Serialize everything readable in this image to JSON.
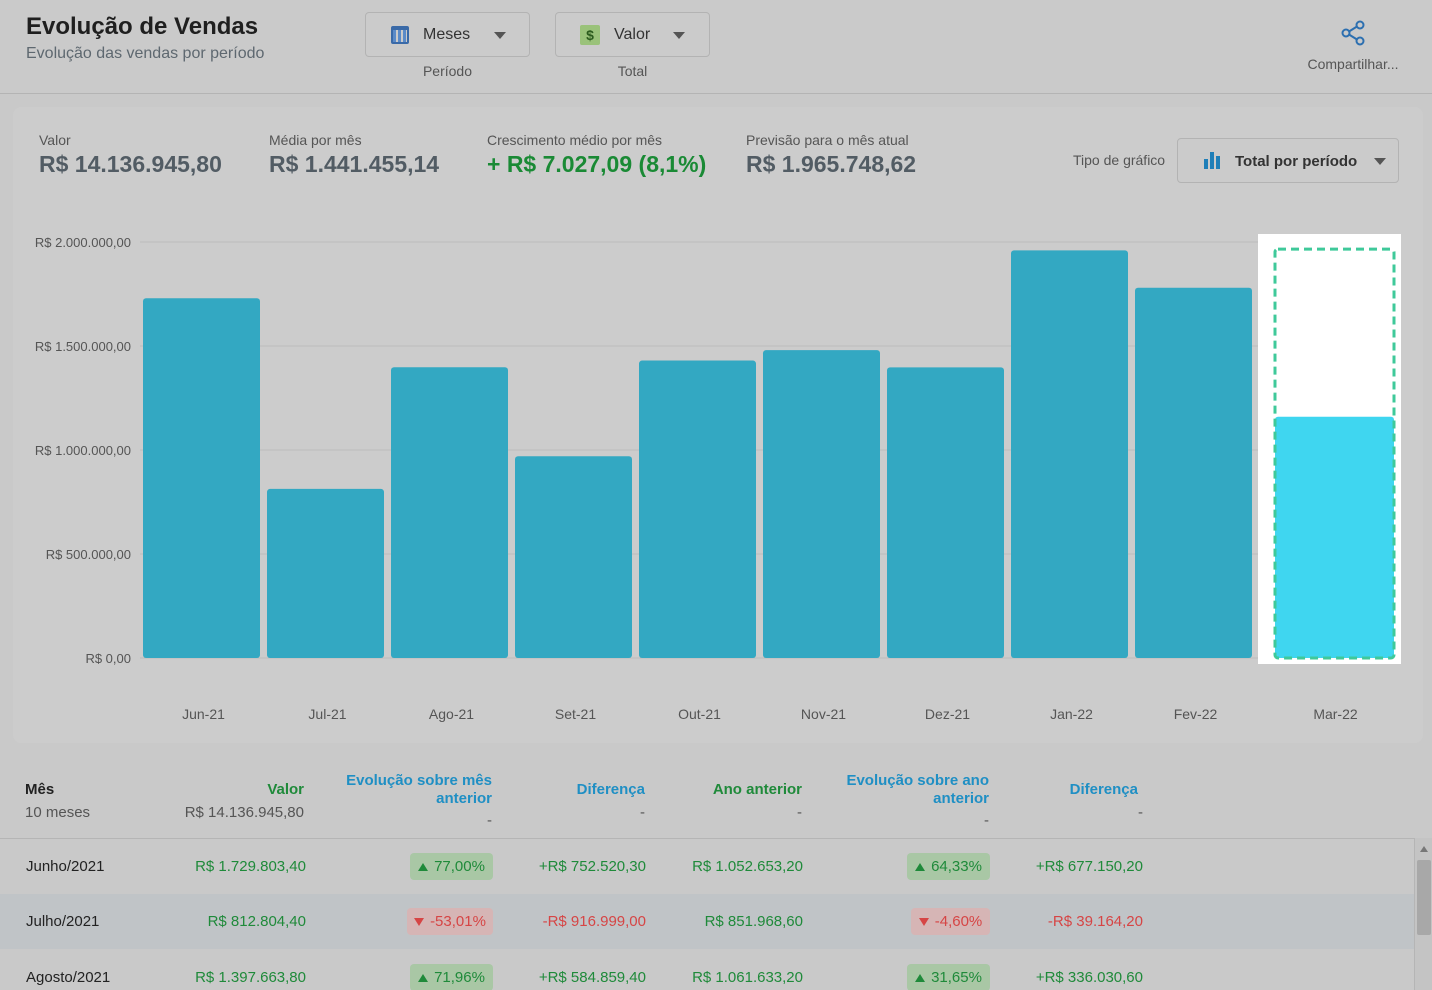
{
  "header": {
    "title": "Evolução de Vendas",
    "subtitle": "Evolução das vendas por período",
    "period_dropdown": {
      "value": "Meses",
      "caption": "Período",
      "icon": "calendar-icon"
    },
    "metric_dropdown": {
      "value": "Valor",
      "caption": "Total",
      "icon": "dollar-icon"
    },
    "share_label": "Compartilhar..."
  },
  "kpis": [
    {
      "label": "Valor",
      "value": "R$ 14.136.945,80"
    },
    {
      "label": "Média por mês",
      "value": "R$ 1.441.455,14"
    },
    {
      "label": "Crescimento médio por mês",
      "value": "+ R$ 7.027,09 (8,1%)"
    },
    {
      "label": "Previsão para o mês atual",
      "value": "R$ 1.965.748,62"
    }
  ],
  "chart_type": {
    "label": "Tipo de gráfico",
    "value": "Total por período"
  },
  "colors": {
    "bar": "#33a8c2",
    "current_bar": "#3fd6f0",
    "forecast_outline": "#3fc99a",
    "positive": "#1f8a3a",
    "negative": "#d64545",
    "header_blue": "#1f8fc4"
  },
  "chart_data": {
    "type": "bar",
    "categories": [
      "Jun-21",
      "Jul-21",
      "Ago-21",
      "Set-21",
      "Out-21",
      "Nov-21",
      "Dez-21",
      "Jan-22",
      "Fev-22",
      "Mar-22"
    ],
    "values": [
      1729803.4,
      812804.4,
      1397663.8,
      970000,
      1430000,
      1480000,
      1397000,
      1960000,
      1780000,
      1160000
    ],
    "forecast": {
      "category": "Mar-22",
      "value": 1965748.62
    },
    "yticks": [
      "R$ 0,00",
      "R$ 500.000,00",
      "R$ 1.000.000,00",
      "R$ 1.500.000,00",
      "R$ 2.000.000,00"
    ],
    "ylim": [
      0,
      2000000
    ],
    "grid": true
  },
  "table": {
    "headers": {
      "month": "Mês",
      "value": "Valor",
      "evo_prev": "Evolução sobre mês anterior",
      "diff1": "Diferença",
      "prev_year": "Ano anterior",
      "evo_year": "Evolução sobre ano anterior",
      "diff2": "Diferença"
    },
    "summary": {
      "month": "10 meses",
      "value": "R$ 14.136.945,80",
      "evo_prev": "-",
      "diff1": "-",
      "prev_year": "-",
      "evo_year": "-",
      "diff2": "-"
    },
    "rows": [
      {
        "month": "Junho/2021",
        "value": "R$ 1.729.803,40",
        "evo_prev": "77,00%",
        "evo_prev_dir": "up",
        "diff1": "+R$ 752.520,30",
        "prev_year": "R$ 1.052.653,20",
        "evo_year": "64,33%",
        "evo_year_dir": "up",
        "diff2": "+R$ 677.150,20"
      },
      {
        "month": "Julho/2021",
        "value": "R$ 812.804,40",
        "evo_prev": "-53,01%",
        "evo_prev_dir": "down",
        "diff1": "-R$ 916.999,00",
        "prev_year": "R$ 851.968,60",
        "evo_year": "-4,60%",
        "evo_year_dir": "down",
        "diff2": "-R$ 39.164,20"
      },
      {
        "month": "Agosto/2021",
        "value": "R$ 1.397.663,80",
        "evo_prev": "71,96%",
        "evo_prev_dir": "up",
        "diff1": "+R$ 584.859,40",
        "prev_year": "R$ 1.061.633,20",
        "evo_year": "31,65%",
        "evo_year_dir": "up",
        "diff2": "+R$ 336.030,60"
      }
    ]
  }
}
